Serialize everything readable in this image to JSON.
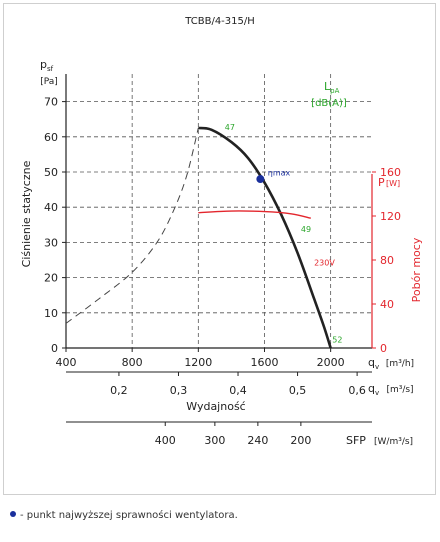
{
  "chart_data": {
    "type": "line",
    "title": "TCBB/4-315/H",
    "y_axis": {
      "symbol": "p",
      "symbol_sub": "sf",
      "unit": "[Pa]",
      "label": "Ciśnienie statyczne",
      "range": [
        0,
        75
      ],
      "ticks": [
        0,
        10,
        20,
        30,
        40,
        50,
        60,
        70
      ]
    },
    "x_axis": {
      "symbol": "q",
      "symbol_sub": "v",
      "unit": "[m³/h]",
      "range": [
        400,
        2250
      ],
      "ticks": [
        400,
        800,
        1200,
        1600,
        2000
      ]
    },
    "x_axis_secondary": {
      "symbol": "q",
      "symbol_sub": "v",
      "unit": "[m³/s]",
      "label": "Wydajność",
      "ticks": [
        "0,2",
        "0,3",
        "0,4",
        "0,5",
        "0,6"
      ],
      "tick_values_m3h": [
        720,
        1080,
        1440,
        1800,
        2160
      ]
    },
    "sfp_axis": {
      "symbol": "SFP",
      "unit": "[W/m³/s]",
      "ticks": [
        "400",
        "300",
        "240",
        "200"
      ],
      "tick_positions_m3h": [
        1000,
        1300,
        1560,
        1820
      ]
    },
    "power_axis": {
      "symbol": "P",
      "unit": "[W]",
      "label": "Pobór mocy",
      "color": "#e3262d",
      "range": [
        0,
        240
      ],
      "ticks": [
        0,
        40,
        80,
        120,
        160
      ]
    },
    "sound_label": {
      "symbol": "L",
      "symbol_sub": "pA",
      "unit": "[dB(A)]",
      "color": "#2aa52a"
    },
    "series": [
      {
        "kind": "pressure",
        "color": "#222222",
        "points": [
          [
            1200,
            62.5
          ],
          [
            1280,
            62.0
          ],
          [
            1400,
            58.5
          ],
          [
            1500,
            54.0
          ],
          [
            1600,
            47.0
          ],
          [
            1700,
            38.0
          ],
          [
            1800,
            27.0
          ],
          [
            1900,
            14.0
          ],
          [
            1960,
            6.0
          ],
          [
            2000,
            0
          ]
        ]
      },
      {
        "kind": "pressure-extension",
        "style": "dashed",
        "color": "#444444",
        "points": [
          [
            400,
            7.0
          ],
          [
            600,
            14.0
          ],
          [
            800,
            21.5
          ],
          [
            950,
            30.0
          ],
          [
            1050,
            39.0
          ],
          [
            1130,
            49.0
          ],
          [
            1200,
            62.5
          ]
        ]
      },
      {
        "kind": "power",
        "name": "230V",
        "color": "#e3262d",
        "points": [
          [
            1200,
            123
          ],
          [
            1400,
            124.5
          ],
          [
            1600,
            124
          ],
          [
            1760,
            122
          ],
          [
            1880,
            118
          ]
        ]
      }
    ],
    "annotations": [
      {
        "text": "47",
        "x": 1360,
        "y": 62,
        "color": "#2aa52a"
      },
      {
        "text": "49",
        "x": 1820,
        "y": 33,
        "color": "#2aa52a"
      },
      {
        "text": "52",
        "x": 2010,
        "y": 1.5,
        "color": "#2aa52a"
      },
      {
        "text": "230V",
        "x": 1900,
        "y": 23.5,
        "color": "#e3262d"
      },
      {
        "text": "ηmax",
        "x": 1620,
        "y": 49,
        "color": "#1a2f9c"
      }
    ],
    "efficiency_point": {
      "x": 1575,
      "y": 48,
      "color": "#1a2f9c"
    },
    "grid": true
  },
  "footnote": "- punkt najwyższej sprawności wentylatora."
}
